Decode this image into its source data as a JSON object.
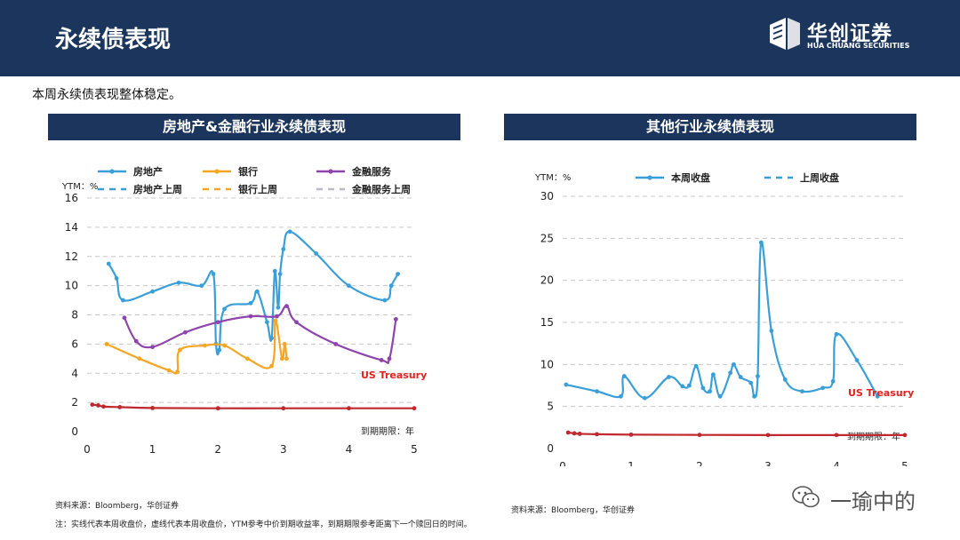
{
  "header": {
    "title": "永续债表现",
    "logo_cn": "华创证券",
    "logo_en": "HUA CHUANG SECURITIES"
  },
  "subtitle": "本周永续债表现整体稳定。",
  "colors": {
    "header_bg": "#1b355c",
    "blue": "#3a9fd9",
    "orange": "#f5a623",
    "purple": "#8e44ad",
    "red": "#c0282d",
    "annotation": "#e0231f"
  },
  "footer": {
    "source_left": "资料来源：Bloomberg，华创证券",
    "source_right": "资料来源：Bloomberg，华创证券",
    "note": "注：实线代表本周收盘价，虚线代表本周收盘价，YTM参考中价到期收益率，到期期限参考距离下一个赎回日的时间。",
    "watermark": "一瑜中的",
    "watermark_icon": "wechat-icon"
  },
  "chart_data": [
    {
      "banner": "房地产&金融行业永续债表现",
      "type": "line",
      "ylabel": "YTM：%",
      "xlabel": "到期期限：年",
      "xlim": [
        0,
        5
      ],
      "ylim": [
        0,
        16
      ],
      "xticks": [
        0,
        1,
        2,
        3,
        4,
        5
      ],
      "yticks": [
        0,
        2,
        4,
        6,
        8,
        10,
        12,
        14,
        16
      ],
      "grid": true,
      "legend_position": "top",
      "legend": [
        {
          "name": "房地产",
          "color": "#3a9fd9",
          "style": "solid"
        },
        {
          "name": "房地产上周",
          "color": "#3a9fd9",
          "style": "dashed"
        },
        {
          "name": "银行",
          "color": "#f5a623",
          "style": "solid"
        },
        {
          "name": "银行上周",
          "color": "#f5a623",
          "style": "dashed"
        },
        {
          "name": "金融服务",
          "color": "#8e44ad",
          "style": "solid"
        },
        {
          "name": "金融服务上周",
          "color": "#b9b9c8",
          "style": "dashed"
        }
      ],
      "annotation": "US Treasury",
      "series": [
        {
          "name": "房地产",
          "color": "#3a9fd9",
          "points": [
            [
              0.33,
              11.5
            ],
            [
              0.45,
              10.5
            ],
            [
              0.55,
              9.0
            ],
            [
              1.0,
              9.6
            ],
            [
              1.4,
              10.2
            ],
            [
              1.75,
              10.0
            ],
            [
              1.93,
              10.8
            ],
            [
              1.97,
              6.0
            ],
            [
              2.02,
              5.6
            ],
            [
              2.1,
              8.4
            ],
            [
              2.5,
              8.8
            ],
            [
              2.6,
              9.6
            ],
            [
              2.75,
              7.5
            ],
            [
              2.82,
              6.4
            ],
            [
              2.87,
              11.0
            ],
            [
              2.92,
              8.5
            ],
            [
              2.95,
              10.8
            ],
            [
              3.0,
              12.5
            ],
            [
              3.1,
              13.7
            ],
            [
              3.5,
              12.2
            ],
            [
              4.0,
              10.0
            ],
            [
              4.55,
              9.0
            ],
            [
              4.65,
              10.0
            ],
            [
              4.75,
              10.8
            ]
          ]
        },
        {
          "name": "银行",
          "color": "#f5a623",
          "points": [
            [
              0.3,
              6.0
            ],
            [
              0.8,
              5.0
            ],
            [
              1.25,
              4.2
            ],
            [
              1.38,
              4.1
            ],
            [
              1.42,
              5.6
            ],
            [
              1.8,
              5.9
            ],
            [
              2.1,
              5.9
            ],
            [
              2.45,
              5.0
            ],
            [
              2.82,
              4.5
            ],
            [
              2.88,
              7.6
            ],
            [
              2.98,
              5.0
            ],
            [
              3.02,
              6.0
            ],
            [
              3.05,
              5.0
            ]
          ]
        },
        {
          "name": "金融服务",
          "color": "#8e44ad",
          "points": [
            [
              0.57,
              7.8
            ],
            [
              0.75,
              6.2
            ],
            [
              1.0,
              5.8
            ],
            [
              1.5,
              6.8
            ],
            [
              2.0,
              7.5
            ],
            [
              2.5,
              7.9
            ],
            [
              2.9,
              7.9
            ],
            [
              3.05,
              8.6
            ],
            [
              3.2,
              7.5
            ],
            [
              3.8,
              6.0
            ],
            [
              4.5,
              4.9
            ],
            [
              4.62,
              5.0
            ],
            [
              4.72,
              7.7
            ]
          ]
        },
        {
          "name": "US Treasury",
          "color": "#c0282d",
          "points": [
            [
              0.08,
              1.85
            ],
            [
              0.17,
              1.8
            ],
            [
              0.25,
              1.72
            ],
            [
              0.5,
              1.68
            ],
            [
              1.0,
              1.62
            ],
            [
              2.0,
              1.6
            ],
            [
              3.0,
              1.6
            ],
            [
              4.0,
              1.6
            ],
            [
              5.0,
              1.6
            ]
          ]
        }
      ]
    },
    {
      "banner": "其他行业永续债表现",
      "type": "line",
      "ylabel": "YTM：%",
      "xlabel": "到期期限：年",
      "xlim": [
        0,
        5
      ],
      "ylim": [
        0,
        30
      ],
      "xticks": [
        0,
        1,
        2,
        3,
        4,
        5
      ],
      "yticks": [
        0,
        5,
        10,
        15,
        20,
        25,
        30
      ],
      "grid": true,
      "legend_position": "top",
      "legend": [
        {
          "name": "本周收盘",
          "color": "#3a9fd9",
          "style": "solid"
        },
        {
          "name": "上周收盘",
          "color": "#3a9fd9",
          "style": "dashed"
        }
      ],
      "annotation": "US Treasury",
      "series": [
        {
          "name": "本周收盘",
          "color": "#3a9fd9",
          "points": [
            [
              0.05,
              7.6
            ],
            [
              0.5,
              6.8
            ],
            [
              0.85,
              6.2
            ],
            [
              0.9,
              8.6
            ],
            [
              1.2,
              6.0
            ],
            [
              1.55,
              8.5
            ],
            [
              1.75,
              7.4
            ],
            [
              1.85,
              7.5
            ],
            [
              1.95,
              9.8
            ],
            [
              2.05,
              7.2
            ],
            [
              2.15,
              6.8
            ],
            [
              2.2,
              8.8
            ],
            [
              2.3,
              6.2
            ],
            [
              2.45,
              9.0
            ],
            [
              2.5,
              10.0
            ],
            [
              2.6,
              8.5
            ],
            [
              2.75,
              7.8
            ],
            [
              2.8,
              6.2
            ],
            [
              2.85,
              8.6
            ],
            [
              2.9,
              24.5
            ],
            [
              3.05,
              14.0
            ],
            [
              3.25,
              8.2
            ],
            [
              3.5,
              6.8
            ],
            [
              3.8,
              7.2
            ],
            [
              3.95,
              8.0
            ],
            [
              4.0,
              13.6
            ],
            [
              4.3,
              10.5
            ],
            [
              4.6,
              6.2
            ]
          ]
        },
        {
          "name": "US Treasury",
          "color": "#c0282d",
          "points": [
            [
              0.08,
              1.9
            ],
            [
              0.17,
              1.8
            ],
            [
              0.25,
              1.75
            ],
            [
              0.5,
              1.7
            ],
            [
              1.0,
              1.65
            ],
            [
              2.0,
              1.62
            ],
            [
              3.0,
              1.6
            ],
            [
              4.0,
              1.6
            ],
            [
              5.0,
              1.6
            ]
          ]
        }
      ]
    }
  ]
}
